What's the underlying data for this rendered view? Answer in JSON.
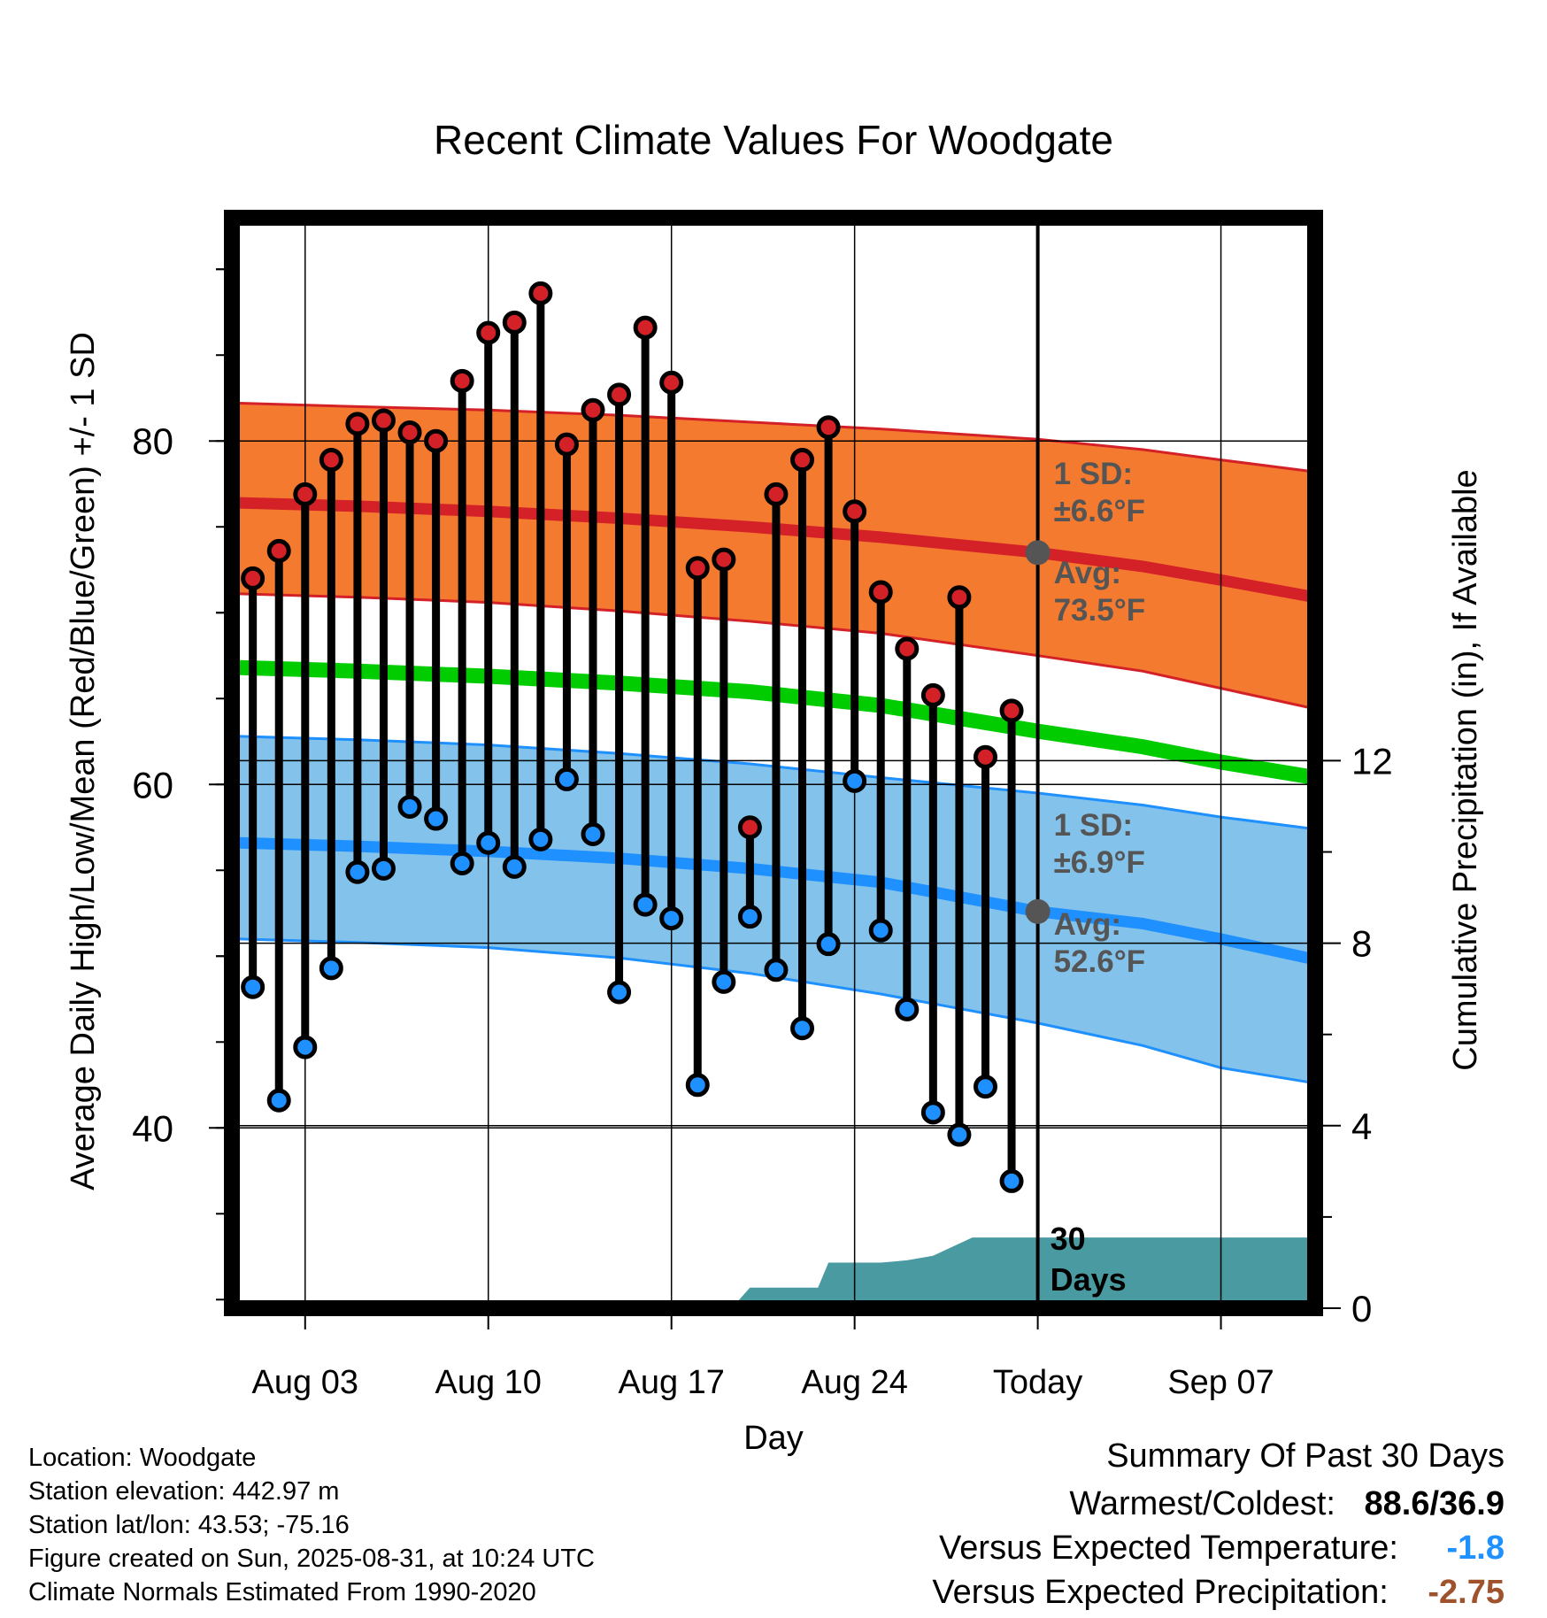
{
  "chart_data": {
    "type": "line",
    "title": "Recent Climate Values For Woodgate",
    "xlabel": "Day",
    "ylabel": "Average Daily High/Low/Mean (Red/Blue/Green) +/- 1 SD",
    "y2label": "Cumulative Precipitation (in), If Available",
    "x_tick_labels": [
      "Aug 03",
      "Aug 10",
      "Aug 17",
      "Aug 24",
      "Today",
      "Sep 07"
    ],
    "x_tick_days": [
      3,
      10,
      17,
      24,
      31,
      38
    ],
    "xlim": [
      0.2,
      41.6
    ],
    "ylim": [
      29.5,
      93
    ],
    "y_ticks": [
      40,
      60,
      80
    ],
    "y2lim": [
      0,
      23.9
    ],
    "y2_ticks": [
      0,
      4,
      8,
      12
    ],
    "today_day": 31,
    "grid": true,
    "days": [
      1,
      2,
      3,
      4,
      5,
      6,
      7,
      8,
      9,
      10,
      11,
      12,
      13,
      14,
      15,
      16,
      17,
      18,
      19,
      20,
      21,
      22,
      23,
      24,
      25,
      26,
      27,
      28,
      29,
      30
    ],
    "highs": [
      72.0,
      73.6,
      76.9,
      78.9,
      81.0,
      81.2,
      80.5,
      80.0,
      83.5,
      86.3,
      86.9,
      88.6,
      79.8,
      81.8,
      82.7,
      86.6,
      83.4,
      72.6,
      73.1,
      57.5,
      76.9,
      78.9,
      80.8,
      75.9,
      71.2,
      67.9,
      65.2,
      70.9,
      61.6,
      64.3
    ],
    "lows": [
      48.2,
      41.6,
      44.7,
      49.3,
      54.9,
      55.1,
      58.7,
      58.0,
      55.4,
      56.6,
      55.2,
      56.8,
      60.3,
      57.1,
      47.9,
      53.0,
      52.2,
      42.5,
      48.5,
      52.3,
      49.2,
      45.8,
      50.7,
      60.2,
      51.5,
      46.9,
      40.9,
      39.6,
      42.4,
      36.9
    ],
    "normal_days": [
      0.5,
      5,
      10,
      15,
      20,
      25,
      31,
      35,
      38,
      41.6
    ],
    "normal_high": [
      76.4,
      76.2,
      75.9,
      75.5,
      75.0,
      74.4,
      73.5,
      72.7,
      71.9,
      70.9
    ],
    "normal_high_upper": [
      82.2,
      82.0,
      81.8,
      81.5,
      81.1,
      80.7,
      80.1,
      79.5,
      78.9,
      78.2
    ],
    "normal_high_lower": [
      71.1,
      70.9,
      70.6,
      70.1,
      69.5,
      68.8,
      67.5,
      66.6,
      65.6,
      64.4
    ],
    "normal_mean": [
      66.8,
      66.6,
      66.3,
      65.9,
      65.4,
      64.6,
      63.1,
      62.2,
      61.3,
      60.4
    ],
    "normal_low": [
      56.6,
      56.4,
      56.1,
      55.7,
      55.1,
      54.3,
      52.6,
      51.9,
      51.0,
      49.8
    ],
    "normal_low_upper": [
      62.8,
      62.6,
      62.3,
      61.8,
      61.2,
      60.4,
      59.5,
      58.8,
      58.1,
      57.4
    ],
    "normal_low_lower": [
      51.0,
      50.8,
      50.5,
      49.9,
      49.0,
      47.8,
      46.1,
      44.8,
      43.5,
      42.6
    ],
    "precip_days": [
      19.3,
      20,
      21,
      22.0,
      22.6,
      23,
      24,
      25,
      26,
      27,
      28.5,
      29.5,
      31,
      41.6
    ],
    "precip_cum": [
      0,
      0.45,
      0.45,
      0.45,
      0.45,
      1.0,
      1.0,
      1.0,
      1.05,
      1.15,
      1.55,
      1.55,
      1.55,
      1.55
    ],
    "window_label": "30 Days",
    "annotations": {
      "high_sd": "1 SD:\n±6.6°F",
      "high_avg": "Avg:\n73.5°F",
      "low_sd": "1 SD:\n±6.9°F",
      "low_avg": "Avg:\n52.6°F"
    },
    "colors": {
      "high_band": "#f47a30",
      "high_line": "#d42027",
      "low_band": "#83c2ea",
      "low_line": "#1e90ff",
      "mean_line": "#00cc00",
      "precip": "#4a9aa2",
      "high_dot": "#d42027",
      "low_dot": "#1e90ff",
      "annotation_text": "#555555"
    }
  },
  "info": {
    "location": "Location: Woodgate",
    "elevation": "Station elevation: 442.97 m",
    "latlon": "Station lat/lon: 43.53; -75.16",
    "created": "Figure created on Sun, 2025-08-31, at 10:24 UTC",
    "normals": "Climate Normals Estimated From 1990-2020"
  },
  "summary": {
    "heading": "Summary Of Past 30 Days",
    "warm_cold_label": "Warmest/Coldest:",
    "warm_cold_value": "88.6/36.9",
    "temp_label": "Versus Expected Temperature:",
    "temp_value": "-1.8",
    "temp_color": "#1e90ff",
    "precip_label": "Versus Expected Precipitation:",
    "precip_value": "-2.75",
    "precip_color": "#a0522d"
  }
}
